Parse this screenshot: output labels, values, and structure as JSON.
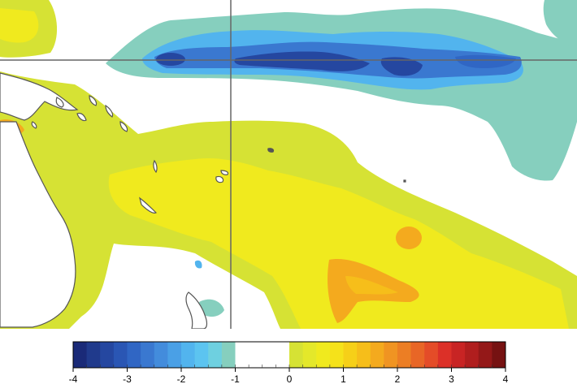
{
  "colors": {
    "ocean_zero": "#ffffff",
    "land": "#ffffff",
    "coast": "#555555",
    "grid": "#666666"
  },
  "map": {
    "icon": "anomaly-map-graphic"
  },
  "colorbar": {
    "min": -4,
    "max": 4,
    "ticks": [
      "-4",
      "-3",
      "-2",
      "-1",
      "0",
      "1",
      "2",
      "3",
      "4"
    ],
    "palette": [
      "#1a2a78",
      "#203a8c",
      "#2547a0",
      "#2a56b4",
      "#3066c4",
      "#3a78d0",
      "#438cdc",
      "#4aa0e6",
      "#52b4ee",
      "#5cc4f0",
      "#6ed0e0",
      "#86cfbe",
      "#ffffff",
      "#ffffff",
      "#ffffff",
      "#ffffff",
      "#d6e234",
      "#e4e82a",
      "#f0ea1e",
      "#f5e21a",
      "#f6d018",
      "#f6be1a",
      "#f4aa1e",
      "#f09422",
      "#ec7e24",
      "#e86626",
      "#e44c28",
      "#dc3028",
      "#c82424",
      "#b01e1e",
      "#941818",
      "#761212"
    ]
  }
}
